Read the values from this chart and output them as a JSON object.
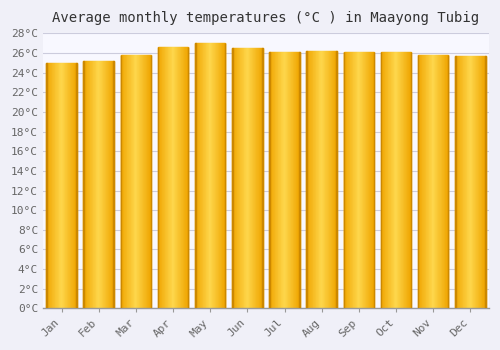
{
  "title": "Average monthly temperatures (°C ) in Maayong Tubig",
  "months": [
    "Jan",
    "Feb",
    "Mar",
    "Apr",
    "May",
    "Jun",
    "Jul",
    "Aug",
    "Sep",
    "Oct",
    "Nov",
    "Dec"
  ],
  "values": [
    25.0,
    25.2,
    25.8,
    26.6,
    27.0,
    26.5,
    26.1,
    26.2,
    26.1,
    26.1,
    25.8,
    25.7
  ],
  "bar_edge_color": "#F0A500",
  "bar_center_color": "#FFD84D",
  "bar_outline_color": "#CC8800",
  "ylim": [
    0,
    28
  ],
  "ytick_values": [
    0,
    2,
    4,
    6,
    8,
    10,
    12,
    14,
    16,
    18,
    20,
    22,
    24,
    26,
    28
  ],
  "background_color": "#F0F0F8",
  "plot_bg_color": "#F8F8FF",
  "grid_color": "#CCCCDD",
  "title_fontsize": 10,
  "tick_fontsize": 8,
  "font_family": "monospace",
  "bar_width": 0.82
}
